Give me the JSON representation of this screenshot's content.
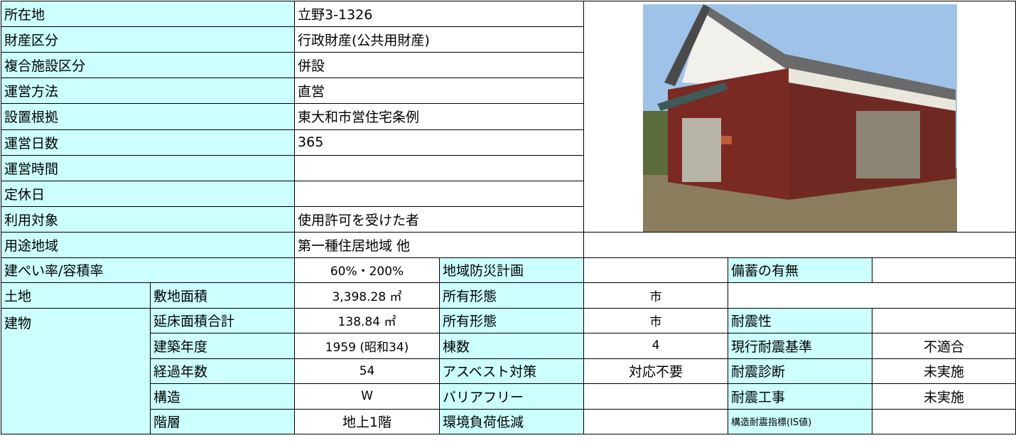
{
  "facility_info": [
    {
      "label": "所在地",
      "value": "立野3-1326"
    },
    {
      "label": "財産区分",
      "value": "行政財産(公共用財産)"
    },
    {
      "label": "複合施設区分",
      "value": "併設"
    },
    {
      "label": "運営方法",
      "value": "直営"
    },
    {
      "label": "設置根拠",
      "value": "東大和市営住宅条例"
    },
    {
      "label": "運営日数",
      "value": "365"
    },
    {
      "label": "運営時間"
    },
    {
      "label": "定休日"
    },
    {
      "label": "利用対象",
      "value": "使用許可を受けた者"
    },
    {
      "label": "用途地域",
      "value": "第一種住居地域 他"
    }
  ],
  "coverage": {
    "label": "建ぺい率/容積率",
    "value": "60%・200%",
    "disaster_plan_label": "地域防災計画",
    "stockpile_label": "備蓄の有無"
  },
  "land": {
    "label": "土地",
    "area_label": "敷地面積",
    "area": "3,398.28 ㎡",
    "ownership_label": "所有形態",
    "ownership": "市"
  },
  "building": {
    "label": "建物",
    "rows": [
      {
        "item": "延床面積合計",
        "value": "138.84 ㎡",
        "item2": "所有形態",
        "value2": "市",
        "item3": "耐震性"
      },
      {
        "item": "建築年度",
        "value": "1959 (昭和34)",
        "item2": "棟数",
        "value2": "4",
        "item3": "現行耐震基準",
        "value3": "不適合"
      },
      {
        "item": "経過年数",
        "value": "54",
        "item2": "アスベスト対策",
        "value2": "対応不要",
        "item3": "耐震診断",
        "value3": "未実施"
      },
      {
        "item": "構造",
        "value": "W",
        "item2": "バリアフリー",
        "item3": "耐震工事",
        "value3": "未実施"
      },
      {
        "item": "階層",
        "value": "地上1階",
        "item2": "環境負荷低減",
        "item3": "構造耐震指標(IS値)"
      }
    ]
  }
}
